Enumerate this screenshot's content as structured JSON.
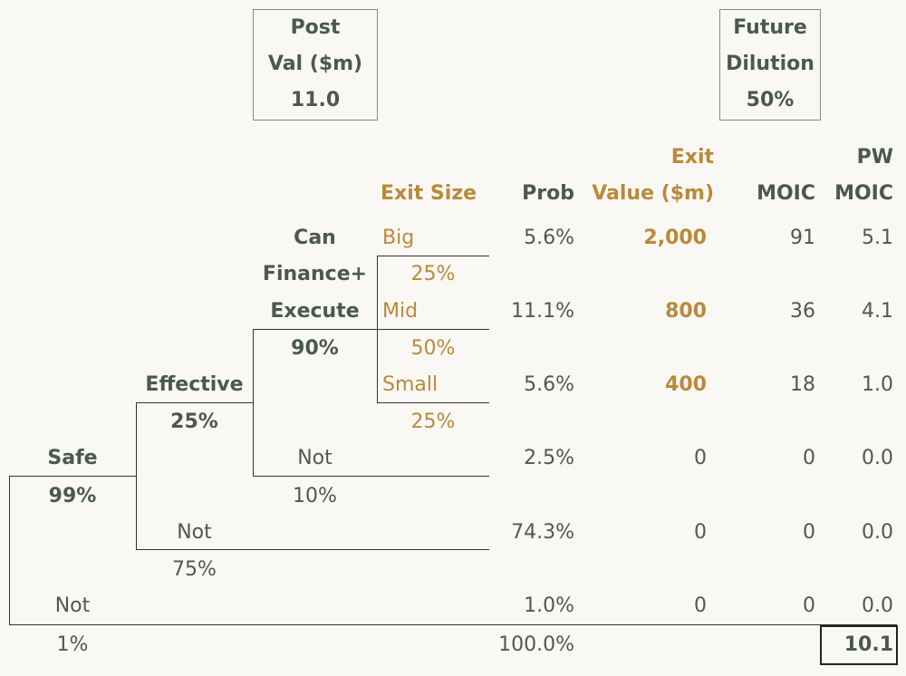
{
  "post_val": {
    "line1": "Post",
    "line2": "Val ($m)",
    "value": "11.0"
  },
  "future_dilution": {
    "line1": "Future",
    "line2": "Dilution",
    "value": "50%"
  },
  "headers": {
    "exit_size": "Exit Size",
    "prob": "Prob",
    "exit_value_1": "Exit",
    "exit_value_2": "Value ($m)",
    "moic": "MOIC",
    "pw_1": "PW",
    "pw_2": "MOIC"
  },
  "tree": {
    "safe": {
      "label": "Safe",
      "prob": "99%"
    },
    "safe_not": {
      "label": "Not",
      "prob": "1%"
    },
    "effective": {
      "label": "Effective",
      "prob": "25%"
    },
    "effective_not": {
      "label": "Not",
      "prob": "75%"
    },
    "finance": {
      "label1": "Can",
      "label2": "Finance+",
      "label3": "Execute",
      "prob": "90%"
    },
    "finance_not": {
      "label": "Not",
      "prob": "10%"
    },
    "big": {
      "label": "Big",
      "prob": "25%"
    },
    "mid": {
      "label": "Mid",
      "prob": "50%"
    },
    "small": {
      "label": "Small",
      "prob": "25%"
    }
  },
  "rows": [
    {
      "prob": "5.6%",
      "exit_value": "2,000",
      "moic": "91",
      "pw": "5.1"
    },
    {
      "prob": "11.1%",
      "exit_value": "800",
      "moic": "36",
      "pw": "4.1"
    },
    {
      "prob": "5.6%",
      "exit_value": "400",
      "moic": "18",
      "pw": "1.0"
    },
    {
      "prob": "2.5%",
      "exit_value": "0",
      "moic": "0",
      "pw": "0.0"
    },
    {
      "prob": "74.3%",
      "exit_value": "0",
      "moic": "0",
      "pw": "0.0"
    },
    {
      "prob": "1.0%",
      "exit_value": "0",
      "moic": "0",
      "pw": "0.0"
    }
  ],
  "totals": {
    "prob": "100.0%",
    "pw": "10.1"
  }
}
